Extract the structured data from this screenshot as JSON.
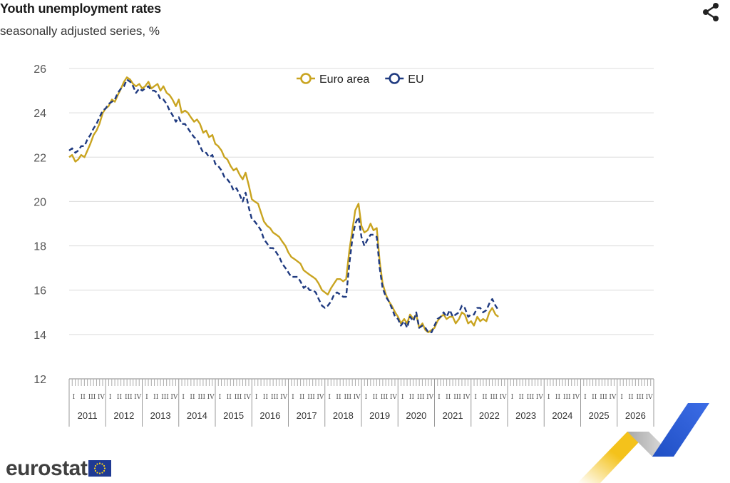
{
  "header": {
    "title": "Youth unemployment rates",
    "subtitle": "seasonally adjusted series, %",
    "share_icon": "share-icon"
  },
  "logo": {
    "text": "eurostat",
    "flag_icon": "eu-flag-icon",
    "ribbon_icon": "eurostat-ribbon-icon"
  },
  "colors": {
    "euro_area": "#C9A420",
    "eu": "#1F3A80",
    "grid": "#DCDCDC",
    "axis_text": "#555555"
  },
  "chart_data": {
    "type": "line",
    "title": "Youth unemployment rates",
    "subtitle": "seasonally adjusted series, %",
    "ylim": [
      12,
      26
    ],
    "yticks": [
      12,
      14,
      16,
      18,
      20,
      22,
      24,
      26
    ],
    "x_range": [
      2011.0,
      2027.0
    ],
    "years": [
      "2011",
      "2012",
      "2013",
      "2014",
      "2015",
      "2016",
      "2017",
      "2018",
      "2019",
      "2020",
      "2021",
      "2022",
      "2023",
      "2024",
      "2025",
      "2026"
    ],
    "quarter_labels": [
      "I",
      "II",
      "III",
      "IV"
    ],
    "grid": true,
    "legend_position": "top-center",
    "series": [
      {
        "name": "Euro area",
        "color": "#C9A420",
        "style": "solid",
        "points": [
          [
            2011.0,
            22.0
          ],
          [
            2011.08,
            22.1
          ],
          [
            2011.17,
            21.8
          ],
          [
            2011.25,
            21.9
          ],
          [
            2011.33,
            22.1
          ],
          [
            2011.42,
            22.0
          ],
          [
            2011.5,
            22.3
          ],
          [
            2011.58,
            22.6
          ],
          [
            2011.67,
            23.0
          ],
          [
            2011.75,
            23.2
          ],
          [
            2011.83,
            23.5
          ],
          [
            2011.92,
            24.0
          ],
          [
            2012.0,
            24.2
          ],
          [
            2012.08,
            24.3
          ],
          [
            2012.17,
            24.6
          ],
          [
            2012.25,
            24.5
          ],
          [
            2012.33,
            24.8
          ],
          [
            2012.42,
            25.1
          ],
          [
            2012.5,
            25.4
          ],
          [
            2012.58,
            25.6
          ],
          [
            2012.67,
            25.5
          ],
          [
            2012.75,
            25.3
          ],
          [
            2012.83,
            25.2
          ],
          [
            2012.92,
            25.3
          ],
          [
            2013.0,
            25.1
          ],
          [
            2013.08,
            25.2
          ],
          [
            2013.17,
            25.4
          ],
          [
            2013.25,
            25.1
          ],
          [
            2013.33,
            25.2
          ],
          [
            2013.42,
            25.3
          ],
          [
            2013.5,
            25.0
          ],
          [
            2013.58,
            25.2
          ],
          [
            2013.67,
            24.9
          ],
          [
            2013.75,
            24.8
          ],
          [
            2013.83,
            24.6
          ],
          [
            2013.92,
            24.3
          ],
          [
            2014.0,
            24.6
          ],
          [
            2014.08,
            24.0
          ],
          [
            2014.17,
            24.1
          ],
          [
            2014.25,
            24.0
          ],
          [
            2014.33,
            23.8
          ],
          [
            2014.42,
            23.6
          ],
          [
            2014.5,
            23.7
          ],
          [
            2014.58,
            23.5
          ],
          [
            2014.67,
            23.1
          ],
          [
            2014.75,
            23.2
          ],
          [
            2014.83,
            22.9
          ],
          [
            2014.92,
            23.0
          ],
          [
            2015.0,
            22.6
          ],
          [
            2015.08,
            22.5
          ],
          [
            2015.17,
            22.3
          ],
          [
            2015.25,
            22.0
          ],
          [
            2015.33,
            21.9
          ],
          [
            2015.42,
            21.6
          ],
          [
            2015.5,
            21.4
          ],
          [
            2015.58,
            21.5
          ],
          [
            2015.67,
            21.2
          ],
          [
            2015.75,
            21.0
          ],
          [
            2015.83,
            21.3
          ],
          [
            2015.92,
            20.7
          ],
          [
            2016.0,
            20.1
          ],
          [
            2016.08,
            20.0
          ],
          [
            2016.17,
            19.9
          ],
          [
            2016.25,
            19.5
          ],
          [
            2016.33,
            19.1
          ],
          [
            2016.42,
            18.9
          ],
          [
            2016.5,
            18.8
          ],
          [
            2016.58,
            18.6
          ],
          [
            2016.67,
            18.5
          ],
          [
            2016.75,
            18.4
          ],
          [
            2016.83,
            18.2
          ],
          [
            2016.92,
            18.0
          ],
          [
            2017.0,
            17.7
          ],
          [
            2017.08,
            17.5
          ],
          [
            2017.17,
            17.4
          ],
          [
            2017.25,
            17.3
          ],
          [
            2017.33,
            17.2
          ],
          [
            2017.42,
            16.9
          ],
          [
            2017.5,
            16.8
          ],
          [
            2017.58,
            16.7
          ],
          [
            2017.67,
            16.6
          ],
          [
            2017.75,
            16.5
          ],
          [
            2017.83,
            16.3
          ],
          [
            2017.92,
            16.0
          ],
          [
            2018.0,
            15.9
          ],
          [
            2018.08,
            15.8
          ],
          [
            2018.17,
            16.1
          ],
          [
            2018.25,
            16.3
          ],
          [
            2018.33,
            16.5
          ],
          [
            2018.42,
            16.5
          ],
          [
            2018.5,
            16.4
          ],
          [
            2018.58,
            16.5
          ],
          [
            2018.67,
            17.8
          ],
          [
            2018.75,
            18.7
          ],
          [
            2018.83,
            19.6
          ],
          [
            2018.92,
            19.9
          ],
          [
            2019.0,
            18.9
          ],
          [
            2019.08,
            18.6
          ],
          [
            2019.17,
            18.7
          ],
          [
            2019.25,
            19.0
          ],
          [
            2019.33,
            18.7
          ],
          [
            2019.42,
            18.8
          ],
          [
            2019.5,
            17.3
          ],
          [
            2019.58,
            16.3
          ],
          [
            2019.67,
            15.8
          ],
          [
            2019.75,
            15.5
          ],
          [
            2019.83,
            15.3
          ],
          [
            2019.92,
            15.0
          ],
          [
            2020.0,
            14.8
          ],
          [
            2020.08,
            14.5
          ],
          [
            2020.17,
            14.7
          ],
          [
            2020.25,
            14.5
          ],
          [
            2020.33,
            14.9
          ],
          [
            2020.42,
            14.7
          ],
          [
            2020.5,
            14.9
          ],
          [
            2020.58,
            14.3
          ],
          [
            2020.67,
            14.5
          ],
          [
            2020.75,
            14.2
          ],
          [
            2020.83,
            14.1
          ],
          [
            2020.92,
            14.2
          ],
          [
            2021.0,
            14.3
          ],
          [
            2021.08,
            14.6
          ],
          [
            2021.17,
            14.8
          ],
          [
            2021.25,
            14.9
          ],
          [
            2021.33,
            14.7
          ],
          [
            2021.42,
            14.8
          ],
          [
            2021.5,
            14.8
          ],
          [
            2021.58,
            14.5
          ],
          [
            2021.67,
            14.7
          ],
          [
            2021.75,
            15.0
          ],
          [
            2021.83,
            14.9
          ],
          [
            2021.92,
            14.5
          ],
          [
            2022.0,
            14.6
          ],
          [
            2022.08,
            14.4
          ],
          [
            2022.17,
            14.8
          ],
          [
            2022.25,
            14.6
          ],
          [
            2022.33,
            14.7
          ],
          [
            2022.42,
            14.6
          ],
          [
            2022.5,
            15.0
          ],
          [
            2022.58,
            15.2
          ],
          [
            2022.67,
            14.9
          ],
          [
            2022.75,
            14.8
          ]
        ]
      },
      {
        "name": "EU",
        "color": "#1F3A80",
        "style": "dashed",
        "points": [
          [
            2011.0,
            22.3
          ],
          [
            2011.08,
            22.4
          ],
          [
            2011.17,
            22.2
          ],
          [
            2011.25,
            22.3
          ],
          [
            2011.33,
            22.5
          ],
          [
            2011.42,
            22.5
          ],
          [
            2011.5,
            22.8
          ],
          [
            2011.58,
            23.0
          ],
          [
            2011.67,
            23.3
          ],
          [
            2011.75,
            23.5
          ],
          [
            2011.83,
            23.8
          ],
          [
            2011.92,
            24.1
          ],
          [
            2012.0,
            24.2
          ],
          [
            2012.08,
            24.4
          ],
          [
            2012.17,
            24.5
          ],
          [
            2012.25,
            24.6
          ],
          [
            2012.33,
            24.9
          ],
          [
            2012.42,
            25.1
          ],
          [
            2012.5,
            25.2
          ],
          [
            2012.58,
            25.5
          ],
          [
            2012.67,
            25.4
          ],
          [
            2012.75,
            25.2
          ],
          [
            2012.83,
            24.9
          ],
          [
            2012.92,
            25.1
          ],
          [
            2013.0,
            25.0
          ],
          [
            2013.08,
            25.1
          ],
          [
            2013.17,
            25.2
          ],
          [
            2013.25,
            25.0
          ],
          [
            2013.33,
            25.0
          ],
          [
            2013.42,
            24.9
          ],
          [
            2013.5,
            24.6
          ],
          [
            2013.58,
            24.6
          ],
          [
            2013.67,
            24.4
          ],
          [
            2013.75,
            24.1
          ],
          [
            2013.83,
            23.9
          ],
          [
            2013.92,
            23.6
          ],
          [
            2014.0,
            23.8
          ],
          [
            2014.08,
            23.5
          ],
          [
            2014.17,
            23.5
          ],
          [
            2014.25,
            23.3
          ],
          [
            2014.33,
            23.1
          ],
          [
            2014.42,
            22.9
          ],
          [
            2014.5,
            22.8
          ],
          [
            2014.58,
            22.5
          ],
          [
            2014.67,
            22.2
          ],
          [
            2014.75,
            22.2
          ],
          [
            2014.83,
            22.0
          ],
          [
            2014.92,
            22.1
          ],
          [
            2015.0,
            21.7
          ],
          [
            2015.08,
            21.6
          ],
          [
            2015.17,
            21.4
          ],
          [
            2015.25,
            21.1
          ],
          [
            2015.33,
            21.0
          ],
          [
            2015.42,
            20.8
          ],
          [
            2015.5,
            20.5
          ],
          [
            2015.58,
            20.6
          ],
          [
            2015.67,
            20.3
          ],
          [
            2015.75,
            20.0
          ],
          [
            2015.83,
            20.4
          ],
          [
            2015.92,
            19.7
          ],
          [
            2016.0,
            19.2
          ],
          [
            2016.08,
            19.1
          ],
          [
            2016.17,
            18.9
          ],
          [
            2016.25,
            18.7
          ],
          [
            2016.33,
            18.3
          ],
          [
            2016.42,
            18.1
          ],
          [
            2016.5,
            17.9
          ],
          [
            2016.58,
            17.9
          ],
          [
            2016.67,
            17.7
          ],
          [
            2016.75,
            17.5
          ],
          [
            2016.83,
            17.2
          ],
          [
            2016.92,
            17.0
          ],
          [
            2017.0,
            16.8
          ],
          [
            2017.08,
            16.6
          ],
          [
            2017.17,
            16.6
          ],
          [
            2017.25,
            16.6
          ],
          [
            2017.33,
            16.4
          ],
          [
            2017.42,
            16.1
          ],
          [
            2017.5,
            16.2
          ],
          [
            2017.58,
            16.0
          ],
          [
            2017.67,
            16.0
          ],
          [
            2017.75,
            15.9
          ],
          [
            2017.83,
            15.6
          ],
          [
            2017.92,
            15.3
          ],
          [
            2018.0,
            15.2
          ],
          [
            2018.08,
            15.3
          ],
          [
            2018.17,
            15.5
          ],
          [
            2018.25,
            15.8
          ],
          [
            2018.33,
            15.9
          ],
          [
            2018.42,
            15.8
          ],
          [
            2018.5,
            15.7
          ],
          [
            2018.58,
            15.7
          ],
          [
            2018.67,
            17.2
          ],
          [
            2018.75,
            18.3
          ],
          [
            2018.83,
            19.0
          ],
          [
            2018.92,
            19.3
          ],
          [
            2019.0,
            18.4
          ],
          [
            2019.08,
            18.0
          ],
          [
            2019.17,
            18.3
          ],
          [
            2019.25,
            18.5
          ],
          [
            2019.33,
            18.5
          ],
          [
            2019.42,
            18.4
          ],
          [
            2019.5,
            17.0
          ],
          [
            2019.58,
            16.1
          ],
          [
            2019.67,
            15.7
          ],
          [
            2019.75,
            15.5
          ],
          [
            2019.83,
            15.2
          ],
          [
            2019.92,
            14.8
          ],
          [
            2020.0,
            14.7
          ],
          [
            2020.08,
            14.4
          ],
          [
            2020.17,
            14.6
          ],
          [
            2020.25,
            14.3
          ],
          [
            2020.33,
            14.8
          ],
          [
            2020.42,
            14.6
          ],
          [
            2020.5,
            15.0
          ],
          [
            2020.58,
            14.3
          ],
          [
            2020.67,
            14.4
          ],
          [
            2020.75,
            14.3
          ],
          [
            2020.83,
            14.1
          ],
          [
            2020.92,
            14.1
          ],
          [
            2021.0,
            14.4
          ],
          [
            2021.08,
            14.7
          ],
          [
            2021.17,
            14.8
          ],
          [
            2021.25,
            15.0
          ],
          [
            2021.33,
            14.8
          ],
          [
            2021.42,
            15.1
          ],
          [
            2021.5,
            14.8
          ],
          [
            2021.58,
            14.9
          ],
          [
            2021.67,
            15.0
          ],
          [
            2021.75,
            15.3
          ],
          [
            2021.83,
            15.2
          ],
          [
            2021.92,
            14.8
          ],
          [
            2022.0,
            14.9
          ],
          [
            2022.08,
            14.9
          ],
          [
            2022.17,
            15.2
          ],
          [
            2022.25,
            15.2
          ],
          [
            2022.33,
            15.0
          ],
          [
            2022.42,
            15.1
          ],
          [
            2022.5,
            15.4
          ],
          [
            2022.58,
            15.6
          ],
          [
            2022.67,
            15.3
          ],
          [
            2022.75,
            15.1
          ]
        ]
      }
    ]
  }
}
